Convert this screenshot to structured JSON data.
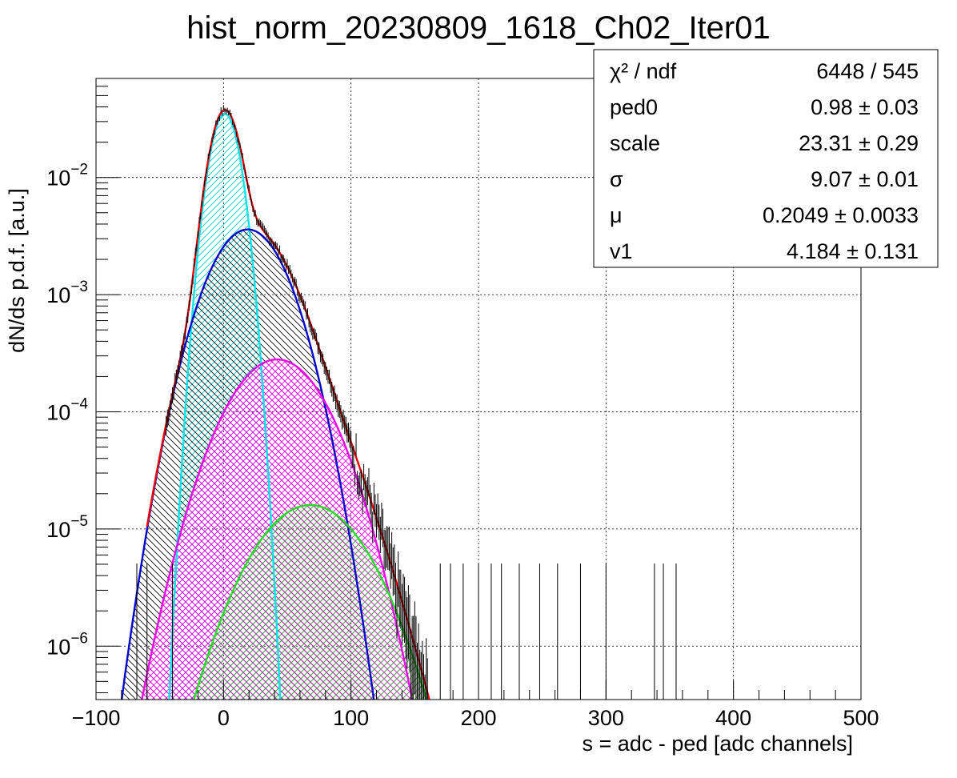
{
  "chart_data": {
    "type": "histogram",
    "title": "hist_norm_20230809_1618_Ch02_Iter01",
    "xlabel": "s = adc - ped [adc channels]",
    "ylabel": "dN/ds p.d.f. [a.u.]",
    "xlim": [
      -100,
      500
    ],
    "ylim": [
      3.5e-07,
      0.07
    ],
    "y_scale": "log",
    "grid": true,
    "x_ticks": [
      "−100",
      "0",
      "100",
      "200",
      "300",
      "400",
      "500"
    ],
    "y_ticks": [
      {
        "value": 1e-06,
        "base": "10",
        "exp": "−6"
      },
      {
        "value": 1e-05,
        "base": "10",
        "exp": "−5"
      },
      {
        "value": 0.0001,
        "base": "10",
        "exp": "−4"
      },
      {
        "value": 0.001,
        "base": "10",
        "exp": "−3"
      },
      {
        "value": 0.01,
        "base": "10",
        "exp": "−2"
      }
    ],
    "stats_box": {
      "placement": "top-right",
      "rows": [
        {
          "name_html": "χ² / ndf",
          "value": "6448 / 545"
        },
        {
          "name_html": "ped0",
          "value": "0.98 ± 0.03"
        },
        {
          "name_html": "scale",
          "value": "23.31 ± 0.29"
        },
        {
          "name_html": "σ",
          "value": "9.07 ± 0.01"
        },
        {
          "name_html": "μ",
          "value": "0.2049 ± 0.0033"
        },
        {
          "name_html": "v1",
          "value": "4.184 ± 0.131"
        }
      ]
    },
    "components": [
      {
        "color": "#00e5ee",
        "mean": 0.98,
        "sigma": 9.07,
        "peak": 0.035,
        "hatch": "diag-right",
        "xmax_draw": 45
      },
      {
        "color": "#0000cc",
        "mean": 19,
        "sigma": 23.0,
        "peak": 0.0036,
        "hatch": "diag-left"
      },
      {
        "color": "#ee00ee",
        "mean": 42,
        "sigma": 29.0,
        "peak": 0.00028,
        "hatch": "cross"
      },
      {
        "color": "#22dd22",
        "mean": 68,
        "sigma": 33.0,
        "peak": 1.6e-05,
        "hatch": "diag-right"
      }
    ],
    "total_fit_color": "#ee0000",
    "isolated_entries": {
      "x": [
        -68,
        -60,
        -40,
        170,
        178,
        188,
        200,
        210,
        218,
        232,
        248,
        262,
        280,
        300,
        338,
        345,
        355
      ],
      "y": [
        3.5e-06,
        3.5e-06,
        3.5e-06,
        3.5e-06,
        3.5e-06,
        3.5e-06,
        3.5e-06,
        3.5e-06,
        3.5e-06,
        3.5e-06,
        3.5e-06,
        3.5e-06,
        3.5e-06,
        3.5e-06,
        3.5e-06,
        3.5e-06,
        3.5e-06
      ]
    }
  }
}
